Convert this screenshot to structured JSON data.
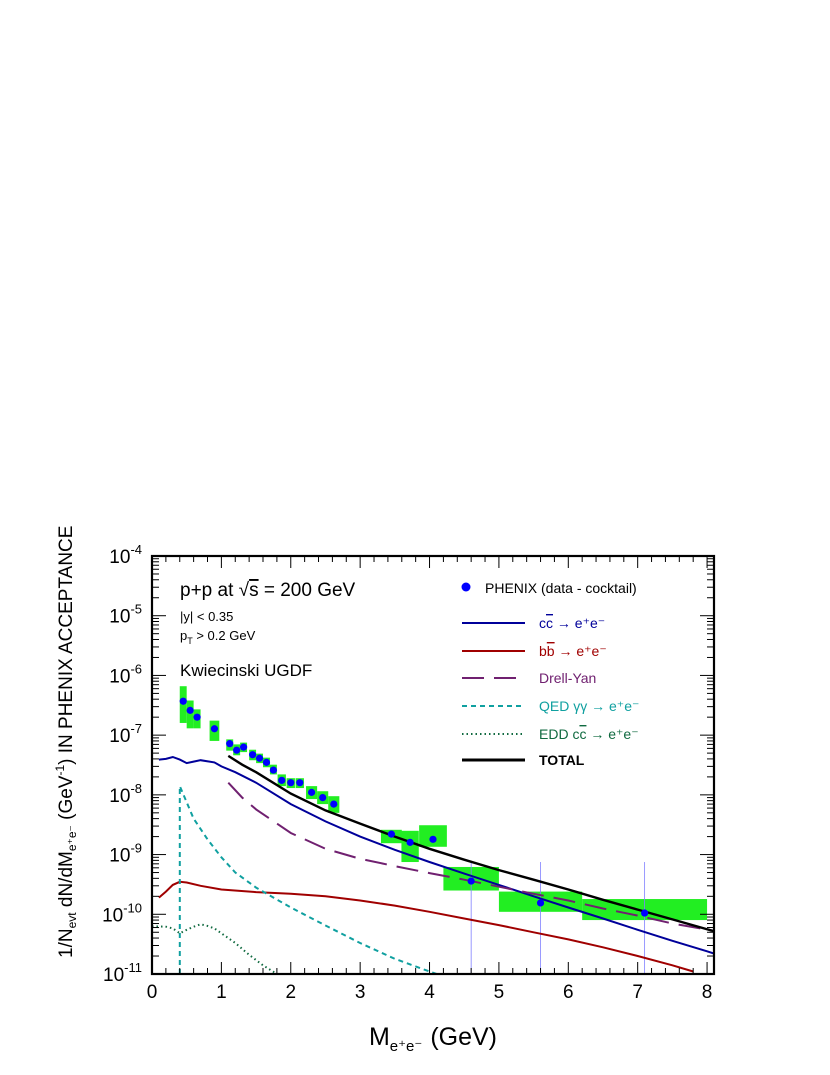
{
  "chart_data": {
    "type": "line",
    "xlabel": "M",
    "xlabel_sub": "e⁺e⁻",
    "xlabel_unit": "(GeV)",
    "ylabel": "1/N",
    "ylabel_sub1": "evt",
    "ylabel_mid": " dN/dM",
    "ylabel_sub2": "e⁺e⁻",
    "ylabel_tail": " (GeV",
    "ylabel_exp": "-1",
    "ylabel_end": ") IN PHENIX ACCEPTANCE",
    "xlim": [
      0,
      8.1
    ],
    "ylim": [
      1e-11,
      0.0001
    ],
    "y_scale": "log",
    "x_ticks": [
      "0",
      "1",
      "2",
      "3",
      "4",
      "5",
      "6",
      "7",
      "8"
    ],
    "y_ticks": [
      {
        "base": "10",
        "exp": "-11"
      },
      {
        "base": "10",
        "exp": "-10"
      },
      {
        "base": "10",
        "exp": "-9"
      },
      {
        "base": "10",
        "exp": "-8"
      },
      {
        "base": "10",
        "exp": "-7"
      },
      {
        "base": "10",
        "exp": "-6"
      },
      {
        "base": "10",
        "exp": "-5"
      },
      {
        "base": "10",
        "exp": "-4"
      }
    ],
    "grid": false,
    "legend_position": "top-right",
    "annotations": {
      "system": "p+p  at ",
      "sqrt_sym": "√",
      "energy_var": "s",
      "energy_rest": " = 200 GeV",
      "cut_y": "|y| < 0.35",
      "cut_pt_p": "p",
      "cut_pt_sub": "T",
      "cut_pt_rest": " > 0.2 GeV",
      "model": "Kwiecinski UGDF"
    },
    "series": [
      {
        "name": "PHENIX (data - cocktail)",
        "kind": "data",
        "color": "#0000ff",
        "band_color": "#22ee22",
        "points": [
          {
            "x": 0.45,
            "y": 3.7e-07,
            "lo": 1.6e-07,
            "hi": 6.6e-07,
            "w": 0.1
          },
          {
            "x": 0.55,
            "y": 2.6e-07,
            "lo": 1.3e-07,
            "hi": 3.8e-07,
            "w": 0.1
          },
          {
            "x": 0.65,
            "y": 2e-07,
            "lo": 1.3e-07,
            "hi": 2.7e-07,
            "w": 0.1
          },
          {
            "x": 0.9,
            "y": 1.28e-07,
            "lo": 8e-08,
            "hi": 1.75e-07,
            "w": 0.14
          },
          {
            "x": 1.12,
            "y": 7.2e-08,
            "lo": 5.5e-08,
            "hi": 8.5e-08,
            "w": 0.1
          },
          {
            "x": 1.22,
            "y": 5.6e-08,
            "lo": 4.6e-08,
            "hi": 7e-08,
            "w": 0.1
          },
          {
            "x": 1.32,
            "y": 6.3e-08,
            "lo": 5.2e-08,
            "hi": 7.5e-08,
            "w": 0.1
          },
          {
            "x": 1.45,
            "y": 4.7e-08,
            "lo": 3.8e-08,
            "hi": 5.7e-08,
            "w": 0.1
          },
          {
            "x": 1.55,
            "y": 4.1e-08,
            "lo": 3.4e-08,
            "hi": 4.9e-08,
            "w": 0.1
          },
          {
            "x": 1.65,
            "y": 3.5e-08,
            "lo": 2.9e-08,
            "hi": 4.2e-08,
            "w": 0.1
          },
          {
            "x": 1.75,
            "y": 2.6e-08,
            "lo": 2.2e-08,
            "hi": 3.2e-08,
            "w": 0.1
          },
          {
            "x": 1.87,
            "y": 1.75e-08,
            "lo": 1.4e-08,
            "hi": 2.2e-08,
            "w": 0.12
          },
          {
            "x": 2.0,
            "y": 1.6e-08,
            "lo": 1.3e-08,
            "hi": 1.9e-08,
            "w": 0.12
          },
          {
            "x": 2.13,
            "y": 1.6e-08,
            "lo": 1.3e-08,
            "hi": 1.9e-08,
            "w": 0.12
          },
          {
            "x": 2.3,
            "y": 1.1e-08,
            "lo": 8.5e-09,
            "hi": 1.4e-08,
            "w": 0.16
          },
          {
            "x": 2.46,
            "y": 9e-09,
            "lo": 7e-09,
            "hi": 1.15e-08,
            "w": 0.16
          },
          {
            "x": 2.62,
            "y": 7e-09,
            "lo": 5e-09,
            "hi": 9.5e-09,
            "w": 0.16
          },
          {
            "x": 3.45,
            "y": 2.2e-09,
            "lo": 1.55e-09,
            "hi": 2.6e-09,
            "w": 0.3
          },
          {
            "x": 3.72,
            "y": 1.6e-09,
            "lo": 7.5e-10,
            "hi": 2.5e-09,
            "w": 0.25
          },
          {
            "x": 4.05,
            "y": 1.8e-09,
            "lo": 1.35e-09,
            "hi": 3.1e-09,
            "w": 0.4
          },
          {
            "x": 4.6,
            "y": 3.6e-10,
            "lo": 2.5e-10,
            "hi": 6.2e-10,
            "w": 0.8
          },
          {
            "x": 5.6,
            "y": 1.55e-10,
            "lo": 1.1e-10,
            "hi": 2.4e-10,
            "w": 1.2
          },
          {
            "x": 7.1,
            "y": 1.05e-10,
            "lo": 8e-11,
            "hi": 1.8e-10,
            "w": 1.8
          }
        ]
      },
      {
        "name_pre": "c",
        "name_bar": "c",
        "name_post": " → e⁺e⁻",
        "kind": "line",
        "color": "#00009a",
        "dash": "",
        "points": [
          [
            0.1,
            3.9e-08
          ],
          [
            0.2,
            4e-08
          ],
          [
            0.3,
            4.3e-08
          ],
          [
            0.4,
            3.9e-08
          ],
          [
            0.5,
            3.4e-08
          ],
          [
            0.6,
            3.6e-08
          ],
          [
            0.7,
            3.8e-08
          ],
          [
            0.9,
            3.5e-08
          ],
          [
            1.0,
            3e-08
          ],
          [
            1.2,
            2.4e-08
          ],
          [
            1.5,
            1.6e-08
          ],
          [
            2.0,
            7e-09
          ],
          [
            2.5,
            3.6e-09
          ],
          [
            3.0,
            2e-09
          ],
          [
            3.5,
            1.2e-09
          ],
          [
            4.0,
            7.5e-10
          ],
          [
            4.5,
            4.8e-10
          ],
          [
            5.0,
            3.1e-10
          ],
          [
            5.5,
            2e-10
          ],
          [
            6.0,
            1.3e-10
          ],
          [
            6.5,
            8.5e-11
          ],
          [
            7.0,
            5.5e-11
          ],
          [
            7.5,
            3.6e-11
          ],
          [
            8.0,
            2.4e-11
          ],
          [
            8.1,
            2.2e-11
          ]
        ]
      },
      {
        "name_pre": "b",
        "name_bar": "b",
        "name_post": " → e⁺e⁻",
        "kind": "line",
        "color": "#a00000",
        "dash": "",
        "points": [
          [
            0.1,
            1.9e-10
          ],
          [
            0.2,
            2.4e-10
          ],
          [
            0.3,
            3.1e-10
          ],
          [
            0.4,
            3.5e-10
          ],
          [
            0.5,
            3.4e-10
          ],
          [
            0.7,
            3e-10
          ],
          [
            1.0,
            2.6e-10
          ],
          [
            1.5,
            2.35e-10
          ],
          [
            2.0,
            2.2e-10
          ],
          [
            2.5,
            2e-10
          ],
          [
            3.0,
            1.7e-10
          ],
          [
            3.5,
            1.4e-10
          ],
          [
            4.0,
            1.1e-10
          ],
          [
            4.5,
            8.5e-11
          ],
          [
            5.0,
            6.6e-11
          ],
          [
            5.5,
            5e-11
          ],
          [
            6.0,
            3.8e-11
          ],
          [
            6.5,
            2.8e-11
          ],
          [
            7.0,
            2e-11
          ],
          [
            7.5,
            1.4e-11
          ],
          [
            7.8,
            1.1e-11
          ]
        ]
      },
      {
        "name": "Drell-Yan",
        "kind": "line",
        "color": "#702070",
        "dash": "22,10",
        "points": [
          [
            1.1,
            1.6e-08
          ],
          [
            1.3,
            9e-09
          ],
          [
            1.5,
            5.7e-09
          ],
          [
            2.0,
            2.3e-09
          ],
          [
            2.5,
            1.25e-09
          ],
          [
            3.0,
            8.5e-10
          ],
          [
            3.5,
            6.4e-10
          ],
          [
            4.0,
            4.9e-10
          ],
          [
            4.5,
            3.8e-10
          ],
          [
            5.0,
            2.9e-10
          ],
          [
            5.5,
            2.2e-10
          ],
          [
            6.0,
            1.7e-10
          ],
          [
            6.5,
            1.25e-10
          ],
          [
            7.0,
            9.5e-11
          ],
          [
            7.5,
            7e-11
          ],
          [
            8.1,
            5.3e-11
          ]
        ]
      },
      {
        "name_pre": "QED ",
        "name_greek": "γγ",
        "name_post": " → e⁺e⁻",
        "kind": "line",
        "color": "#10a0a0",
        "dash": "5,4",
        "points": [
          [
            0.4,
            1e-11
          ],
          [
            0.4,
            1.4e-08
          ],
          [
            0.5,
            7.5e-09
          ],
          [
            0.6,
            4e-09
          ],
          [
            0.8,
            1.8e-09
          ],
          [
            1.0,
            9e-10
          ],
          [
            1.2,
            5e-10
          ],
          [
            1.5,
            2.8e-10
          ],
          [
            2.0,
            1.3e-10
          ],
          [
            2.5,
            6.5e-11
          ],
          [
            3.0,
            3.3e-11
          ],
          [
            3.5,
            1.8e-11
          ],
          [
            4.0,
            1.1e-11
          ],
          [
            4.1,
            1e-11
          ]
        ]
      },
      {
        "name_pre": "EDD c",
        "name_bar": "c",
        "name_post": " → e⁺e⁻",
        "kind": "line",
        "color": "#106a40",
        "dash": "1.5,3",
        "points": [
          [
            0.0,
            6.3e-11
          ],
          [
            0.2,
            6.2e-11
          ],
          [
            0.3,
            5.8e-11
          ],
          [
            0.4,
            4.8e-11
          ],
          [
            0.5,
            5.5e-11
          ],
          [
            0.6,
            6.2e-11
          ],
          [
            0.7,
            6.8e-11
          ],
          [
            0.8,
            6.4e-11
          ],
          [
            0.9,
            5.8e-11
          ],
          [
            1.0,
            4.8e-11
          ],
          [
            1.2,
            3.3e-11
          ],
          [
            1.4,
            2.1e-11
          ],
          [
            1.6,
            1.4e-11
          ],
          [
            1.8,
            1e-11
          ]
        ]
      },
      {
        "name": "TOTAL",
        "kind": "line",
        "color": "#000000",
        "dash": "",
        "points": [
          [
            1.1,
            4.5e-08
          ],
          [
            1.3,
            3.2e-08
          ],
          [
            1.5,
            2.4e-08
          ],
          [
            2.0,
            1.05e-08
          ],
          [
            2.5,
            5.5e-09
          ],
          [
            3.0,
            3.3e-09
          ],
          [
            3.5,
            2e-09
          ],
          [
            4.0,
            1.25e-09
          ],
          [
            4.5,
            8.2e-10
          ],
          [
            5.0,
            5.5e-10
          ],
          [
            5.5,
            3.8e-10
          ],
          [
            6.0,
            2.6e-10
          ],
          [
            6.5,
            1.75e-10
          ],
          [
            7.0,
            1.2e-10
          ],
          [
            7.5,
            8.2e-11
          ],
          [
            8.1,
            5.2e-11
          ]
        ]
      }
    ]
  }
}
